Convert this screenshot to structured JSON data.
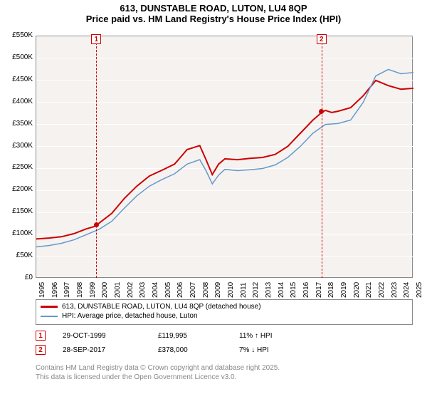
{
  "title": "613, DUNSTABLE ROAD, LUTON, LU4 8QP",
  "subtitle": "Price paid vs. HM Land Registry's House Price Index (HPI)",
  "chart": {
    "type": "line",
    "background_color": "#f5f2f0",
    "grid_color": "#ffffff",
    "border_color": "#888888",
    "ylim": [
      0,
      550
    ],
    "ytick_step": 50,
    "y_prefix": "£",
    "y_suffix": "K",
    "yticks": [
      "£0",
      "£50K",
      "£100K",
      "£150K",
      "£200K",
      "£250K",
      "£300K",
      "£350K",
      "£400K",
      "£450K",
      "£500K",
      "£550K"
    ],
    "xlim": [
      1995,
      2025
    ],
    "xticks": [
      1995,
      1996,
      1997,
      1998,
      1999,
      2000,
      2001,
      2002,
      2003,
      2004,
      2005,
      2006,
      2007,
      2008,
      2009,
      2010,
      2011,
      2012,
      2013,
      2014,
      2015,
      2016,
      2017,
      2018,
      2019,
      2020,
      2021,
      2022,
      2023,
      2024,
      2025
    ],
    "title_fontsize": 13,
    "label_fontsize": 10,
    "line_width_series1": 2,
    "line_width_series2": 1.5,
    "series": [
      {
        "name": "613, DUNSTABLE ROAD, LUTON, LU4 8QP (detached house)",
        "color": "#cc0000",
        "x": [
          1995,
          1996,
          1997,
          1998,
          1999,
          1999.83,
          2000,
          2001,
          2002,
          2003,
          2004,
          2005,
          2006,
          2007,
          2008,
          2008.5,
          2009,
          2009.5,
          2010,
          2011,
          2012,
          2013,
          2014,
          2015,
          2016,
          2017,
          2017.74,
          2018,
          2018.5,
          2019,
          2020,
          2021,
          2022,
          2023,
          2024,
          2025
        ],
        "y": [
          90,
          92,
          95,
          102,
          113,
          120,
          126,
          148,
          182,
          210,
          233,
          246,
          260,
          293,
          302,
          270,
          236,
          260,
          272,
          270,
          273,
          275,
          282,
          300,
          330,
          360,
          378,
          382,
          377,
          380,
          388,
          415,
          450,
          438,
          430,
          432
        ]
      },
      {
        "name": "HPI: Average price, detached house, Luton",
        "color": "#6699cc",
        "x": [
          1995,
          1996,
          1997,
          1998,
          1999,
          2000,
          2001,
          2002,
          2003,
          2004,
          2005,
          2006,
          2007,
          2008,
          2008.5,
          2009,
          2009.5,
          2010,
          2011,
          2012,
          2013,
          2014,
          2015,
          2016,
          2017,
          2018,
          2019,
          2020,
          2021,
          2022,
          2023,
          2024,
          2025
        ],
        "y": [
          72,
          75,
          80,
          88,
          100,
          112,
          130,
          160,
          188,
          210,
          225,
          238,
          260,
          270,
          245,
          215,
          235,
          248,
          245,
          247,
          250,
          258,
          275,
          300,
          330,
          350,
          352,
          360,
          400,
          460,
          475,
          465,
          468
        ]
      }
    ],
    "markers": [
      {
        "num": "1",
        "x": 1999.83,
        "y": 120,
        "date": "29-OCT-1999",
        "price": "£119,995",
        "delta": "11% ↑ HPI"
      },
      {
        "num": "2",
        "x": 2017.74,
        "y": 378,
        "date": "28-SEP-2017",
        "price": "£378,000",
        "delta": "7% ↓ HPI"
      }
    ]
  },
  "legend": {
    "items": [
      {
        "color": "#cc0000",
        "label": "613, DUNSTABLE ROAD, LUTON, LU4 8QP (detached house)"
      },
      {
        "color": "#6699cc",
        "label": "HPI: Average price, detached house, Luton"
      }
    ]
  },
  "footer": {
    "line1": "Contains HM Land Registry data © Crown copyright and database right 2025.",
    "line2": "This data is licensed under the Open Government Licence v3.0."
  }
}
